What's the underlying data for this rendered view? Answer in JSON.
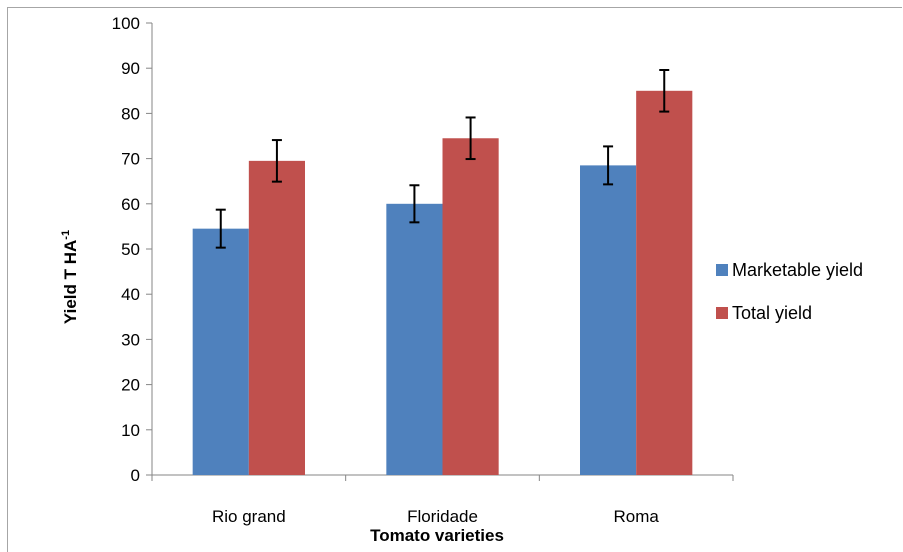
{
  "chart_data": {
    "type": "bar",
    "title": "",
    "xlabel": "Tomato varieties",
    "ylabel": "Yield  T HA",
    "ylabel_superscript": "-1",
    "ylim": [
      0,
      100
    ],
    "yticks": [
      0,
      10,
      20,
      30,
      40,
      50,
      60,
      70,
      80,
      90,
      100
    ],
    "categories": [
      "Rio grand",
      "Floridade",
      "Roma"
    ],
    "series": [
      {
        "name": "Marketable yield",
        "color": "#4f81bd",
        "values": [
          54.5,
          60,
          68.5
        ],
        "errors": [
          4.2,
          4.1,
          4.2
        ]
      },
      {
        "name": "Total yield",
        "color": "#c0504d",
        "values": [
          69.5,
          74.5,
          85
        ],
        "errors": [
          4.6,
          4.6,
          4.6
        ]
      }
    ],
    "grid": false,
    "legend": "right"
  }
}
